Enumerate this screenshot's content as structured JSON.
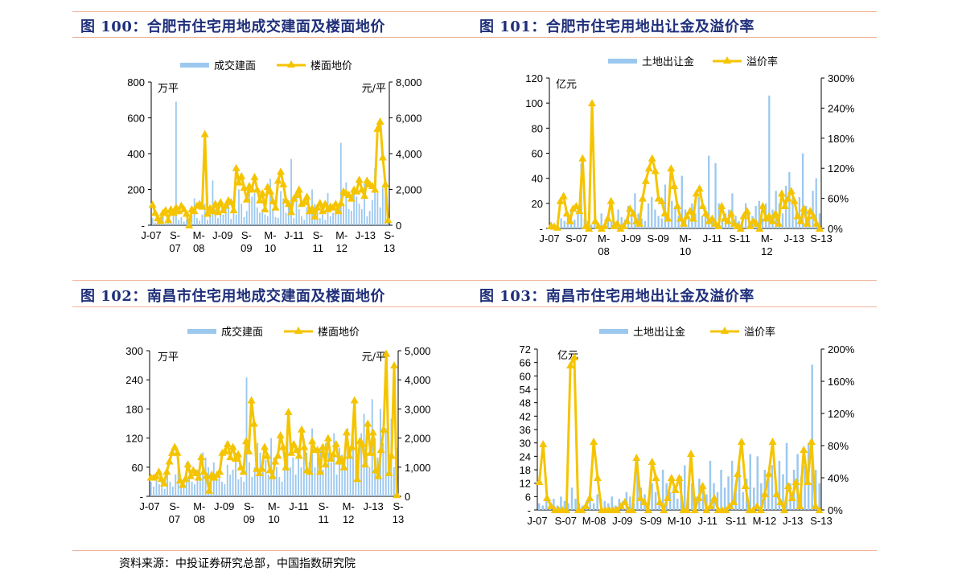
{
  "titles": {
    "fig100": "图 100：合肥市住宅用地成交建面及楼面地价",
    "fig101": "图 101：合肥市住宅用地出让金及溢价率",
    "fig102": "图 102：南昌市住宅用地成交建面及楼面地价",
    "fig103": "图 103：南昌市住宅用地出让金及溢价率"
  },
  "source": "资料来源：中投证券研究总部，中国指数研究院",
  "colors": {
    "bar": "#9cc8ef",
    "line": "#f5c400",
    "title": "#1f2f7a",
    "rule": "#f0b49a"
  },
  "chart_data": [
    {
      "id": "c100",
      "type": "bar+line",
      "legend": [
        "成交建面",
        "楼面地价"
      ],
      "left_unit": "万平",
      "right_unit": "元/平",
      "left_ticks": [
        "-",
        "200",
        "400",
        "600",
        "800"
      ],
      "left_max": 800,
      "right_ticks": [
        "0",
        "2,000",
        "4,000",
        "6,000",
        "8,000"
      ],
      "right_max": 8000,
      "x_labels": [
        [
          "J-07"
        ],
        [
          "S-",
          "07"
        ],
        [
          "M-",
          "08"
        ],
        [
          "J-09"
        ],
        [
          "S-",
          "09"
        ],
        [
          "M-",
          "10"
        ],
        [
          "J-11"
        ],
        [
          "S-",
          "11"
        ],
        [
          "M-",
          "12"
        ],
        [
          "J-13"
        ],
        [
          "S-",
          "13"
        ]
      ],
      "bars": [
        40,
        15,
        25,
        30,
        50,
        10,
        35,
        20,
        60,
        690,
        30,
        45,
        20,
        30,
        25,
        55,
        150,
        40,
        25,
        60,
        120,
        30,
        70,
        250,
        90,
        40,
        80,
        60,
        110,
        150,
        35,
        90,
        60,
        200,
        120,
        45,
        80,
        220,
        160,
        180,
        100,
        70,
        90,
        60,
        50,
        260,
        90,
        45,
        40,
        190,
        150,
        70,
        130,
        370,
        40,
        170,
        90,
        50,
        30,
        100,
        70,
        200,
        120,
        90,
        40,
        60,
        30,
        180,
        50,
        70,
        90,
        60,
        460,
        120,
        240,
        90,
        80,
        200,
        160,
        120,
        90,
        230,
        50,
        80,
        140,
        320,
        180,
        100,
        210,
        170,
        60
      ],
      "line": [
        1150,
        700,
        400,
        250,
        700,
        850,
        300,
        900,
        700,
        1000,
        800,
        1100,
        900,
        650,
        0,
        900,
        800,
        1100,
        1200,
        1050,
        5100,
        650,
        950,
        800,
        1200,
        750,
        1300,
        850,
        1100,
        1400,
        1300,
        850,
        3200,
        2400,
        2750,
        2100,
        1450,
        2200,
        2000,
        2700,
        2000,
        1400,
        1800,
        900,
        2150,
        1900,
        1350,
        1000,
        2500,
        3000,
        2300,
        1400,
        1200,
        750,
        1500,
        1700,
        2000,
        1200,
        1300,
        1600,
        800,
        950,
        500,
        1000,
        1250,
        800,
        1200,
        900,
        1050,
        1000,
        1200,
        800,
        1250,
        1900,
        1800,
        1700,
        1500,
        2000,
        1900,
        2550,
        2000,
        1650,
        2500,
        2300,
        2200,
        2000,
        5400,
        5800,
        3800,
        2300,
        300
      ]
    },
    {
      "id": "c101",
      "type": "bar+line",
      "legend": [
        "土地出让金",
        "溢价率"
      ],
      "left_unit": "亿元",
      "right_unit": "",
      "left_ticks": [
        "-",
        "20",
        "40",
        "60",
        "80",
        "100",
        "120"
      ],
      "left_max": 120,
      "right_ticks": [
        "0%",
        "60%",
        "120%",
        "180%",
        "240%",
        "300%"
      ],
      "right_max": 300,
      "x_labels": [
        [
          "J-07"
        ],
        [
          "S-07"
        ],
        [
          "M-",
          "08"
        ],
        [
          "J-09"
        ],
        [
          "S-09"
        ],
        [
          "M-",
          "10"
        ],
        [
          "J-11"
        ],
        [
          "S-11"
        ],
        [
          "M-",
          "12"
        ],
        [
          "J-13"
        ],
        [
          "S-13"
        ]
      ],
      "bars": [
        5,
        3,
        4,
        8,
        6,
        10,
        15,
        7,
        12,
        52,
        8,
        6,
        3,
        20,
        5,
        12,
        4,
        8,
        6,
        5,
        15,
        9,
        7,
        18,
        10,
        28,
        12,
        8,
        6,
        20,
        25,
        15,
        10,
        8,
        35,
        12,
        22,
        18,
        10,
        42,
        15,
        8,
        20,
        12,
        25,
        10,
        15,
        58,
        10,
        52,
        20,
        8,
        12,
        15,
        28,
        10,
        6,
        8,
        20,
        12,
        10,
        18,
        22,
        8,
        20,
        106,
        15,
        30,
        20,
        12,
        34,
        45,
        28,
        12,
        25,
        60,
        18,
        10,
        30,
        40,
        12
      ],
      "line": [
        5,
        4,
        2,
        55,
        65,
        30,
        15,
        40,
        45,
        35,
        140,
        5,
        0,
        250,
        15,
        5,
        0,
        5,
        20,
        55,
        5,
        10,
        0,
        5,
        15,
        40,
        30,
        15,
        10,
        60,
        95,
        120,
        140,
        115,
        60,
        55,
        30,
        20,
        120,
        85,
        45,
        20,
        10,
        25,
        35,
        20,
        70,
        80,
        45,
        30,
        15,
        20,
        10,
        5,
        45,
        20,
        15,
        30,
        10,
        5,
        0,
        25,
        35,
        5,
        15,
        10,
        0,
        45,
        20,
        25,
        15,
        30,
        10,
        70,
        45,
        60,
        75,
        55,
        25,
        15,
        40,
        10,
        35,
        25,
        10,
        0
      ]
    },
    {
      "id": "c102",
      "type": "bar+line",
      "legend": [
        "成交建面",
        "楼面地价"
      ],
      "left_unit": "万平",
      "right_unit": "元/平",
      "left_ticks": [
        "-",
        "60",
        "120",
        "180",
        "240",
        "300"
      ],
      "left_max": 300,
      "right_ticks": [
        "0",
        "1,000",
        "2,000",
        "3,000",
        "4,000",
        "5,000"
      ],
      "right_max": 5000,
      "x_labels": [
        [
          "J-07"
        ],
        [
          "S-",
          "07"
        ],
        [
          "M-",
          "08"
        ],
        [
          "J-09"
        ],
        [
          "S-",
          "09"
        ],
        [
          "M-",
          "10"
        ],
        [
          "J-11"
        ],
        [
          "S-",
          "11"
        ],
        [
          "M-",
          "12"
        ],
        [
          "J-13"
        ],
        [
          "S-",
          "13"
        ]
      ],
      "bars": [
        30,
        20,
        40,
        25,
        35,
        15,
        50,
        30,
        20,
        45,
        60,
        25,
        35,
        70,
        40,
        30,
        25,
        55,
        45,
        90,
        80,
        60,
        40,
        70,
        35,
        50,
        30,
        25,
        65,
        45,
        55,
        90,
        35,
        40,
        30,
        245,
        70,
        40,
        60,
        110,
        90,
        50,
        75,
        45,
        120,
        80,
        60,
        40,
        30,
        90,
        150,
        60,
        80,
        45,
        100,
        60,
        120,
        90,
        70,
        140,
        60,
        80,
        100,
        55,
        110,
        90,
        70,
        130,
        45,
        100,
        85,
        60,
        140,
        90,
        120,
        75,
        100,
        130,
        170,
        90,
        60,
        200,
        120,
        80,
        180,
        110,
        140,
        95,
        160,
        60,
        100
      ],
      "line": [
        650,
        650,
        700,
        850,
        600,
        450,
        850,
        1200,
        1500,
        1700,
        1500,
        550,
        400,
        600,
        1100,
        700,
        900,
        800,
        650,
        1350,
        850,
        700,
        200,
        750,
        650,
        750,
        850,
        1500,
        1550,
        1800,
        1350,
        1700,
        1300,
        1450,
        1000,
        850,
        1900,
        1550,
        3300,
        2500,
        950,
        800,
        950,
        1700,
        1400,
        900,
        700,
        1200,
        1400,
        2100,
        1700,
        1000,
        2900,
        1500,
        1800,
        1600,
        1400,
        2300,
        1700,
        900,
        850,
        1900,
        1600,
        1600,
        850,
        1700,
        1100,
        2000,
        1300,
        1450,
        1800,
        1200,
        1300,
        1000,
        2200,
        1400,
        1700,
        3300,
        600,
        1900,
        1800,
        1100,
        2500,
        1500,
        2200,
        900,
        700,
        1600,
        2300,
        4900,
        800,
        1400,
        4500,
        50
      ]
    },
    {
      "id": "c103",
      "type": "bar+line",
      "legend": [
        "土地出让金",
        "溢价率"
      ],
      "left_unit": "亿元",
      "right_unit": "",
      "left_ticks": [
        "-",
        "6",
        "12",
        "18",
        "24",
        "30",
        "36",
        "42",
        "48",
        "54",
        "60",
        "66",
        "72"
      ],
      "left_max": 72,
      "right_ticks": [
        "0%",
        "40%",
        "80%",
        "120%",
        "160%",
        "200%"
      ],
      "right_max": 200,
      "x_labels": [
        [
          "J-07"
        ],
        [
          "S-07"
        ],
        [
          "M-08"
        ],
        [
          "J-09"
        ],
        [
          "S-09"
        ],
        [
          "M-10"
        ],
        [
          "J-11"
        ],
        [
          "S-11"
        ],
        [
          "M-12"
        ],
        [
          "J-13"
        ],
        [
          "S-13"
        ]
      ],
      "bars": [
        3,
        2,
        4,
        3,
        5,
        2,
        6,
        4,
        3,
        10,
        5,
        3,
        2,
        4,
        6,
        3,
        7,
        5,
        4,
        3,
        6,
        2,
        5,
        4,
        8,
        6,
        3,
        22,
        10,
        7,
        5,
        12,
        8,
        6,
        18,
        12,
        8,
        10,
        5,
        15,
        20,
        9,
        12,
        6,
        14,
        10,
        7,
        22,
        12,
        8,
        18,
        10,
        15,
        22,
        12,
        20,
        8,
        14,
        25,
        10,
        24,
        12,
        18,
        15,
        20,
        10,
        22,
        16,
        30,
        12,
        18,
        25,
        15,
        20,
        30,
        65,
        18,
        12
      ],
      "line": [
        35,
        82,
        15,
        5,
        0,
        0,
        0,
        0,
        180,
        190,
        0,
        0,
        5,
        15,
        85,
        40,
        0,
        0,
        0,
        0,
        0,
        5,
        10,
        0,
        0,
        65,
        15,
        10,
        0,
        60,
        40,
        10,
        0,
        15,
        40,
        25,
        40,
        0,
        0,
        70,
        0,
        15,
        30,
        0,
        5,
        15,
        0,
        0,
        0,
        5,
        10,
        45,
        85,
        30,
        0,
        0,
        5,
        0,
        20,
        45,
        85,
        20,
        10,
        0,
        30,
        15,
        35,
        5,
        75,
        35,
        85,
        5,
        0
      ]
    }
  ]
}
